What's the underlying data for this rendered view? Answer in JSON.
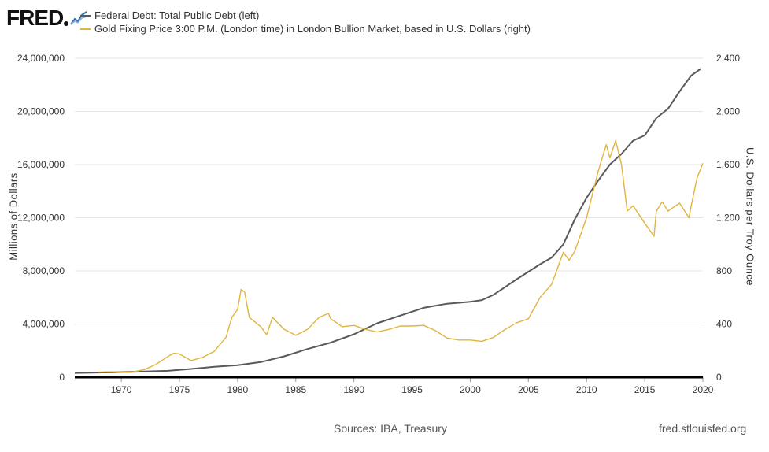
{
  "logo": {
    "text": "FRED"
  },
  "footer": {
    "sources": "Sources: IBA, Treasury",
    "site": "fred.stlouisfed.org"
  },
  "colors": {
    "debt": "#595959",
    "gold": "#e1b43b",
    "grid": "#e6e6e6",
    "baseline": "#000000"
  },
  "chart_data": {
    "type": "line",
    "grid": true,
    "legend_placement": "top-left",
    "left_axis": {
      "label": "Millions of Dollars",
      "range": [
        0,
        24000000
      ],
      "ticks": [
        0,
        4000000,
        8000000,
        12000000,
        16000000,
        20000000,
        24000000
      ],
      "tick_labels": [
        "0",
        "4,000,000",
        "8,000,000",
        "12,000,000",
        "16,000,000",
        "20,000,000",
        "24,000,000"
      ]
    },
    "right_axis": {
      "label": "U.S. Dollars per Troy Ounce",
      "range": [
        0,
        2400
      ],
      "ticks": [
        0,
        400,
        800,
        1200,
        1600,
        2000,
        2400
      ],
      "tick_labels": [
        "0",
        "400",
        "800",
        "1,200",
        "1,600",
        "2,000",
        "2,400"
      ]
    },
    "x_axis": {
      "range": [
        1966,
        2020
      ],
      "ticks": [
        1970,
        1975,
        1980,
        1985,
        1990,
        1995,
        2000,
        2005,
        2010,
        2015,
        2020
      ],
      "tick_labels": [
        "1970",
        "1975",
        "1980",
        "1985",
        "1990",
        "1995",
        "2000",
        "2005",
        "2010",
        "2015",
        "2020"
      ]
    },
    "series": [
      {
        "name": "Federal Debt: Total Public Debt (left)",
        "axis": "left",
        "points": [
          [
            1966,
            320000
          ],
          [
            1968,
            350000
          ],
          [
            1970,
            380000
          ],
          [
            1972,
            430000
          ],
          [
            1974,
            480000
          ],
          [
            1976,
            620000
          ],
          [
            1978,
            780000
          ],
          [
            1980,
            900000
          ],
          [
            1982,
            1140000
          ],
          [
            1984,
            1570000
          ],
          [
            1986,
            2120000
          ],
          [
            1988,
            2600000
          ],
          [
            1990,
            3230000
          ],
          [
            1992,
            4060000
          ],
          [
            1994,
            4640000
          ],
          [
            1996,
            5220000
          ],
          [
            1998,
            5530000
          ],
          [
            2000,
            5670000
          ],
          [
            2001,
            5800000
          ],
          [
            2002,
            6200000
          ],
          [
            2004,
            7380000
          ],
          [
            2006,
            8500000
          ],
          [
            2007,
            9000000
          ],
          [
            2008,
            10000000
          ],
          [
            2009,
            11900000
          ],
          [
            2010,
            13500000
          ],
          [
            2011,
            14800000
          ],
          [
            2012,
            16000000
          ],
          [
            2013,
            16800000
          ],
          [
            2014,
            17800000
          ],
          [
            2015,
            18200000
          ],
          [
            2016,
            19500000
          ],
          [
            2017,
            20200000
          ],
          [
            2018,
            21500000
          ],
          [
            2019,
            22700000
          ],
          [
            2019.8,
            23200000
          ]
        ]
      },
      {
        "name": "Gold Fixing Price 3:00 P.M. (London time) in London Bullion Market, based in U.S. Dollars (right)",
        "axis": "right",
        "points": [
          [
            1968,
            38
          ],
          [
            1969,
            41
          ],
          [
            1970,
            36
          ],
          [
            1971,
            40
          ],
          [
            1972,
            58
          ],
          [
            1973,
            97
          ],
          [
            1974,
            155
          ],
          [
            1974.5,
            180
          ],
          [
            1975,
            175
          ],
          [
            1976,
            125
          ],
          [
            1977,
            150
          ],
          [
            1978,
            195
          ],
          [
            1979,
            300
          ],
          [
            1979.5,
            450
          ],
          [
            1980,
            510
          ],
          [
            1980.3,
            660
          ],
          [
            1980.6,
            640
          ],
          [
            1981,
            450
          ],
          [
            1982,
            380
          ],
          [
            1982.5,
            320
          ],
          [
            1983,
            450
          ],
          [
            1984,
            360
          ],
          [
            1985,
            315
          ],
          [
            1986,
            360
          ],
          [
            1987,
            450
          ],
          [
            1987.8,
            480
          ],
          [
            1988,
            440
          ],
          [
            1989,
            380
          ],
          [
            1990,
            390
          ],
          [
            1991,
            360
          ],
          [
            1992,
            340
          ],
          [
            1993,
            360
          ],
          [
            1994,
            385
          ],
          [
            1995,
            385
          ],
          [
            1996,
            390
          ],
          [
            1997,
            350
          ],
          [
            1998,
            295
          ],
          [
            1999,
            280
          ],
          [
            2000,
            280
          ],
          [
            2001,
            270
          ],
          [
            2002,
            300
          ],
          [
            2003,
            360
          ],
          [
            2004,
            410
          ],
          [
            2005,
            440
          ],
          [
            2006,
            600
          ],
          [
            2007,
            700
          ],
          [
            2008,
            940
          ],
          [
            2008.5,
            880
          ],
          [
            2009,
            950
          ],
          [
            2010,
            1200
          ],
          [
            2011,
            1550
          ],
          [
            2011.7,
            1750
          ],
          [
            2012,
            1650
          ],
          [
            2012.5,
            1780
          ],
          [
            2013,
            1600
          ],
          [
            2013.5,
            1250
          ],
          [
            2014,
            1290
          ],
          [
            2015,
            1160
          ],
          [
            2015.8,
            1060
          ],
          [
            2016,
            1250
          ],
          [
            2016.5,
            1320
          ],
          [
            2017,
            1250
          ],
          [
            2018,
            1310
          ],
          [
            2018.8,
            1200
          ],
          [
            2019,
            1290
          ],
          [
            2019.5,
            1500
          ],
          [
            2020,
            1610
          ]
        ]
      }
    ]
  }
}
